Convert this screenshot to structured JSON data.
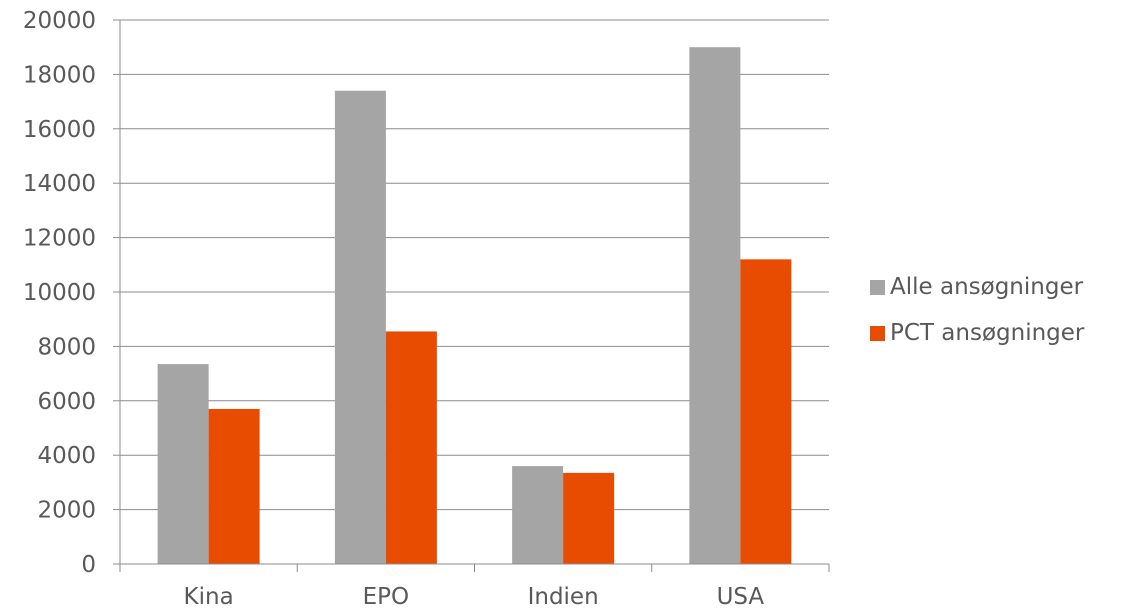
{
  "chart_data": {
    "type": "bar",
    "categories": [
      "Kina",
      "EPO",
      "Indien",
      "USA"
    ],
    "series": [
      {
        "name": "Alle ansøgninger",
        "color": "#A5A5A5",
        "values": [
          7350,
          17400,
          3600,
          19000
        ]
      },
      {
        "name": "PCT ansøgninger",
        "color": "#E84C00",
        "values": [
          5700,
          8550,
          3350,
          11200
        ]
      }
    ],
    "ylim": [
      0,
      20000
    ],
    "yticks": [
      "0",
      "2000",
      "4000",
      "6000",
      "8000",
      "10000",
      "12000",
      "14000",
      "16000",
      "18000",
      "20000"
    ],
    "grid": true,
    "legend_position": "right",
    "title": "",
    "xlabel": "",
    "ylabel": ""
  }
}
